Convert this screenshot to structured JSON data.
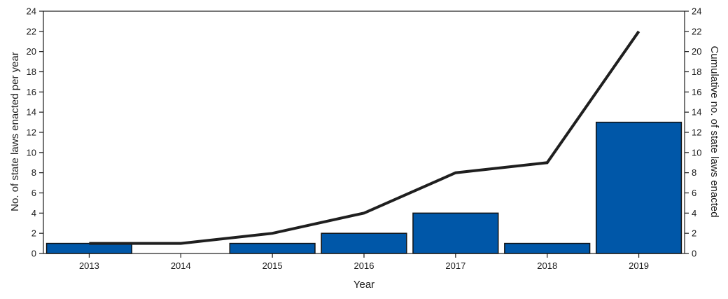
{
  "chart_data": {
    "type": "bar",
    "categories": [
      "2013",
      "2014",
      "2015",
      "2016",
      "2017",
      "2018",
      "2019"
    ],
    "series": [
      {
        "values": [
          1,
          0,
          1,
          2,
          4,
          1,
          13
        ],
        "type": "bar",
        "axis": "left"
      },
      {
        "values": [
          1,
          1,
          2,
          4,
          8,
          9,
          22
        ],
        "type": "line",
        "axis": "right"
      }
    ],
    "xlabel": "Year",
    "ylabel": "No. of state laws enacted per year",
    "y2label": "Cumulative no. of state laws enacted",
    "ylim": [
      0,
      24
    ],
    "y2lim": [
      0,
      24
    ],
    "yticks": [
      "0",
      "2",
      "4",
      "6",
      "8",
      "10",
      "12",
      "14",
      "16",
      "18",
      "20",
      "22",
      "24"
    ],
    "grid": false,
    "colors": {
      "bar": "#0057a8",
      "line": "#1f1f1f",
      "axis": "#1a1a1a"
    }
  }
}
